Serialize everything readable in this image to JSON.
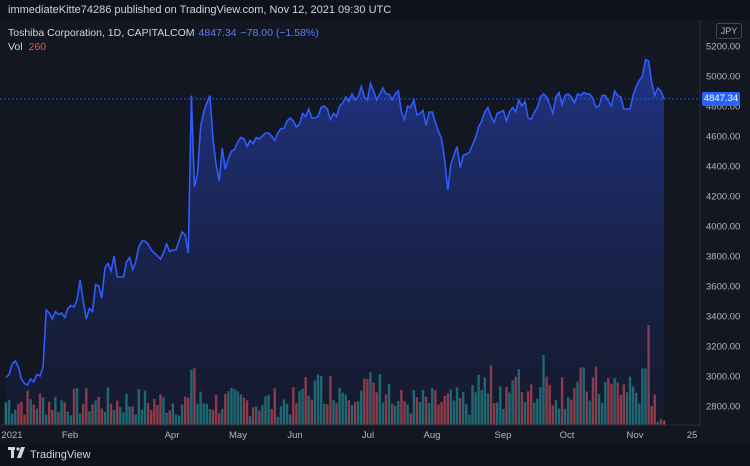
{
  "header": {
    "published_text": "immediateKitte74286 published on TradingView.com, Nov 12, 2021 09:30 UTC"
  },
  "legend": {
    "symbol": "Toshiba Corporation, 1D, CAPITALCOM",
    "last": "4847.34",
    "change": "−78.00 (−1.58%)",
    "vol_label": "Vol",
    "vol_value": "260"
  },
  "currency": "JPY",
  "price_tag": "4847.34",
  "footer": {
    "brand": "TradingView"
  },
  "colors": {
    "line": "#2f5bff",
    "up_volume": "#26a69a",
    "down_volume": "#ef5350",
    "background": "#131722"
  },
  "chart_data": {
    "type": "area",
    "title": "Toshiba Corporation, 1D, CAPITALCOM",
    "series_price": {
      "values": [
        2990,
        3010,
        3080,
        3100,
        3060,
        2980,
        2950,
        2940,
        2980,
        2960,
        3010,
        3000,
        3060,
        3440,
        3420,
        3380,
        3430,
        3410,
        3420,
        3390,
        3450,
        3470,
        3460,
        3510,
        3640,
        3500,
        3380,
        3450,
        3430,
        3610,
        3600,
        3520,
        3720,
        3750,
        3700,
        3800,
        3660,
        3660,
        3660,
        3760,
        3790,
        3710,
        3760,
        3860,
        3900,
        3900,
        3880,
        3840,
        3820,
        3800,
        3780,
        3820,
        3880,
        3830,
        3840,
        3840,
        3900,
        3960,
        3940,
        3820,
        4870,
        4260,
        4350,
        4660,
        4760,
        4820,
        4870,
        4580,
        4410,
        4300,
        4520,
        4380,
        4450,
        4500,
        4510,
        4560,
        4590,
        4580,
        4530,
        4570,
        4550,
        4590,
        4580,
        4600,
        4620,
        4620,
        4600,
        4570,
        4620,
        4650,
        4650,
        4700,
        4720,
        4700,
        4660,
        4680,
        4750,
        4730,
        4780,
        4720,
        4720,
        4730,
        4790,
        4800,
        4780,
        4710,
        4750,
        4730,
        4800,
        4820,
        4860,
        4830,
        4880,
        4840,
        4860,
        4930,
        4860,
        4840,
        4950,
        4900,
        4840,
        4880,
        4920,
        4880,
        4880,
        4840,
        4880,
        4900,
        4760,
        4710,
        4800,
        4790,
        4840,
        4740,
        4750,
        4770,
        4670,
        4760,
        4760,
        4690,
        4630,
        4580,
        4440,
        4240,
        4410,
        4470,
        4530,
        4390,
        4470,
        4480,
        4490,
        4540,
        4590,
        4660,
        4700,
        4760,
        4790,
        4730,
        4690,
        4750,
        4760,
        4770,
        4700,
        4760,
        4790,
        4760,
        4840,
        4800,
        4830,
        4720,
        4710,
        4760,
        4790,
        4860,
        4880,
        4860,
        4810,
        4750,
        4860,
        4890,
        4810,
        4870,
        4880,
        4860,
        4820,
        4880,
        4870,
        4890,
        4880,
        4880,
        4850,
        4790,
        4800,
        4870,
        4870,
        4830,
        4800,
        4900,
        4870,
        4860,
        4780,
        4780,
        4780,
        4870,
        4930,
        4970,
        5000,
        5110,
        5100,
        4960,
        4870,
        4920,
        4900,
        4847
      ]
    },
    "series_volume_note": "volume bars shown in lower pane; heights approximate (relative scale)",
    "x_tick_labels": [
      "2021",
      "Feb",
      "Apr",
      "May",
      "Jun",
      "Jul",
      "Aug",
      "Sep",
      "Oct",
      "Nov",
      "25"
    ],
    "y_tick_labels": [
      "5200.00",
      "5000.00",
      "4800.00",
      "4600.00",
      "4400.00",
      "4200.00",
      "4000.00",
      "3800.00",
      "3600.00",
      "3400.00",
      "3200.00",
      "3000.00",
      "2800.00"
    ],
    "ylim": [
      2710,
      5260
    ],
    "last_value": 4847.34,
    "grid": false
  }
}
